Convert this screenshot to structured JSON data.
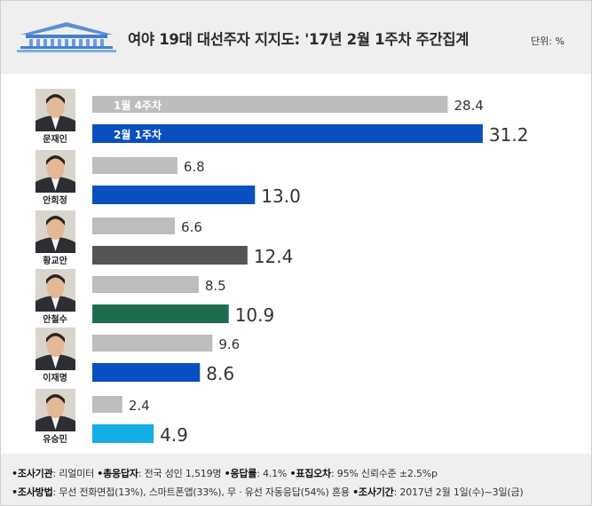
{
  "header": {
    "title": "여야 19대 대선주자 지지도: '17년 2월 1주차 주간집계",
    "unit": "단위: %"
  },
  "colors": {
    "prev": "#bdbdbd",
    "blue": "#0a4fbf",
    "gray": "#555555",
    "green": "#1e6b4d",
    "sky": "#14aee6",
    "label": "#333333"
  },
  "chart_data": {
    "type": "bar",
    "orientation": "horizontal",
    "title": "여야 19대 대선주자 지지도: '17년 2월 1주차 주간집계",
    "unit": "단위: %",
    "categories": [
      "문재인",
      "안희정",
      "황교안",
      "안철수",
      "이재명",
      "유승민"
    ],
    "series": [
      {
        "name": "1월 4주차",
        "values": [
          28.4,
          6.8,
          6.6,
          8.5,
          9.6,
          2.4
        ]
      },
      {
        "name": "2월 1주차",
        "values": [
          31.2,
          13.0,
          12.4,
          10.9,
          8.6,
          4.9
        ]
      }
    ],
    "series_colors": [
      "#bdbdbd",
      [
        "#0a4fbf",
        "#0a4fbf",
        "#555555",
        "#1e6b4d",
        "#0a4fbf",
        "#14aee6"
      ]
    ],
    "xlim": [
      0,
      40
    ],
    "grid": false,
    "legend": "inside-first-bars"
  },
  "footer": {
    "line1": [
      {
        "b": "•조사기관",
        "t": ": 리얼미터 "
      },
      {
        "b": "•총응답자",
        "t": ": 전국 성인 1,519명 "
      },
      {
        "b": "•응답률",
        "t": ": 4.1% "
      },
      {
        "b": "•표집오차",
        "t": ": 95% 신뢰수준 ±2.5%p"
      }
    ],
    "line2": [
      {
        "b": "•조사방법",
        "t": ": 무선 전화면접(13%), 스마트폰앱(33%), 무 · 유선 자동응답(54%) 혼용 "
      },
      {
        "b": "•조사기간",
        "t": ": 2017년 2월 1일(수)~3일(금)"
      }
    ]
  }
}
